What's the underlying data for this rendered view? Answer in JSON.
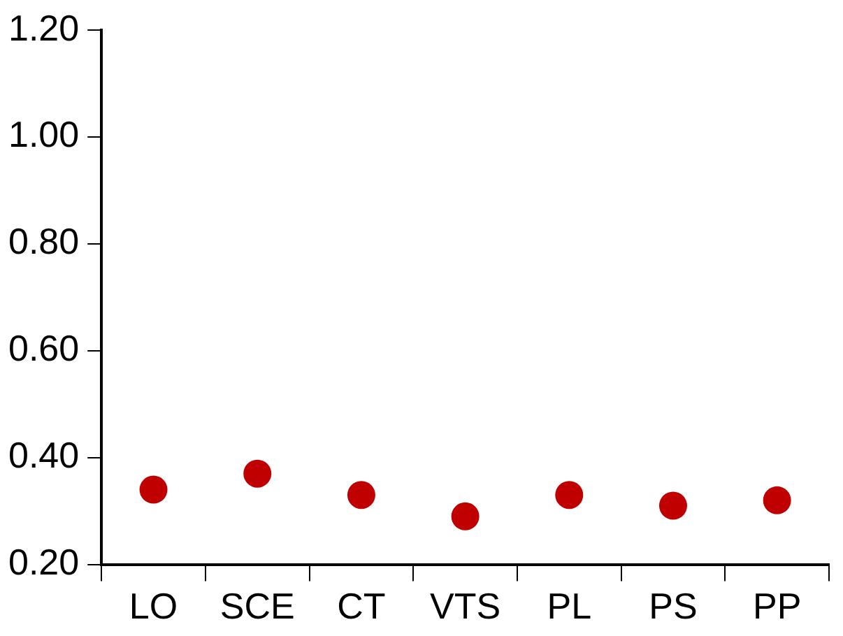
{
  "chart_data": {
    "type": "scatter",
    "categories": [
      "LO",
      "SCE",
      "CT",
      "VTS",
      "PL",
      "PS",
      "PP"
    ],
    "series": [
      {
        "color": "#c00000",
        "values": [
          0.34,
          0.37,
          0.33,
          0.29,
          0.33,
          0.31,
          0.32
        ]
      }
    ],
    "ylim": [
      0.2,
      1.2
    ],
    "yticks": [
      {
        "value": 0.2,
        "label": "0.20"
      },
      {
        "value": 0.4,
        "label": "0.40"
      },
      {
        "value": 0.6,
        "label": "0.60"
      },
      {
        "value": 0.8,
        "label": "0.80"
      },
      {
        "value": 1.0,
        "label": "1.00"
      },
      {
        "value": 1.2,
        "label": "1.20"
      }
    ],
    "marker": "circle",
    "grid": false,
    "legend": false
  }
}
